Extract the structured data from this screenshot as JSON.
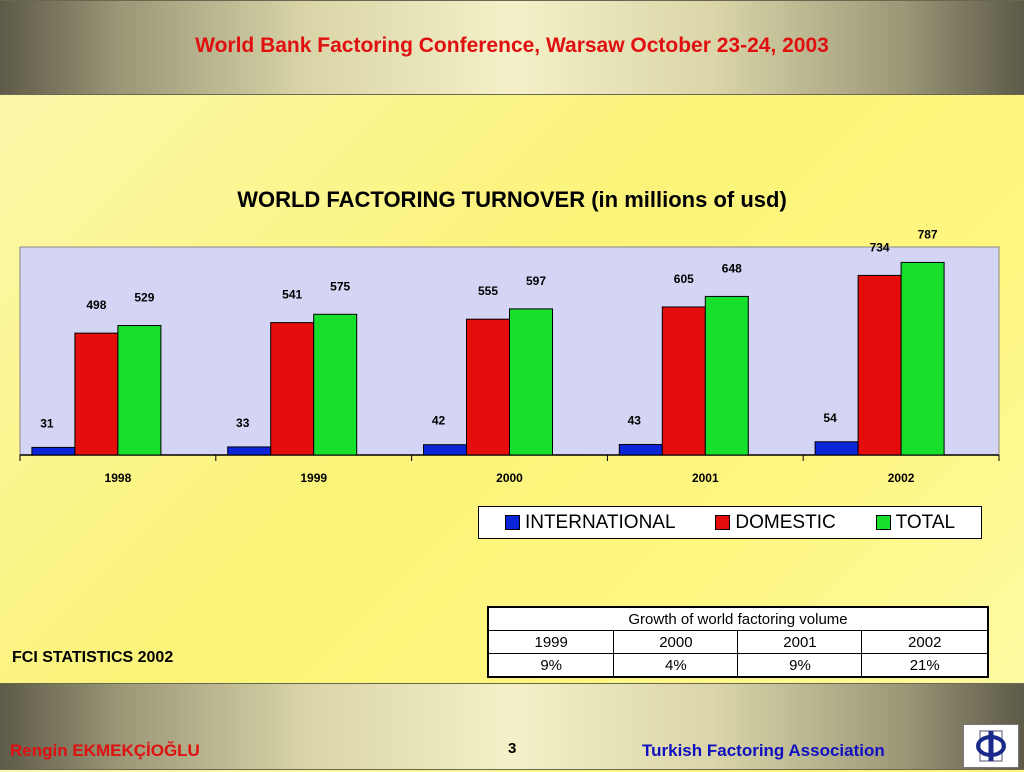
{
  "header": {
    "title": "World Bank Factoring  Conference, Warsaw October 23-24, 2003"
  },
  "chart_data": {
    "type": "bar",
    "title": "WORLD FACTORING TURNOVER (in millions of usd)",
    "categories": [
      "1998",
      "1999",
      "2000",
      "2001",
      "2002"
    ],
    "series": [
      {
        "name": "INTERNATIONAL",
        "values": [
          31,
          33,
          42,
          43,
          54
        ],
        "color": "#0b24d8"
      },
      {
        "name": "DOMESTIC",
        "values": [
          498,
          541,
          555,
          605,
          734
        ],
        "color": "#e50c0c"
      },
      {
        "name": "TOTAL",
        "values": [
          529,
          575,
          597,
          648,
          787
        ],
        "color": "#16e02c"
      }
    ],
    "ylim": [
      0,
      850
    ],
    "grid": false,
    "legend_position": "bottom-right",
    "plot_background": "#d4d4f4"
  },
  "growth_table": {
    "title": "Growth of world  factoring volume",
    "years": [
      "1999",
      "2000",
      "2001",
      "2002"
    ],
    "growth": [
      "9%",
      "4%",
      "9%",
      "21%"
    ]
  },
  "footer": {
    "source": "FCI  STATISTICS 2002",
    "author": "Rengin EKMEKÇİOĞLU",
    "page_number": "3",
    "association": "Turkish Factoring Association"
  }
}
